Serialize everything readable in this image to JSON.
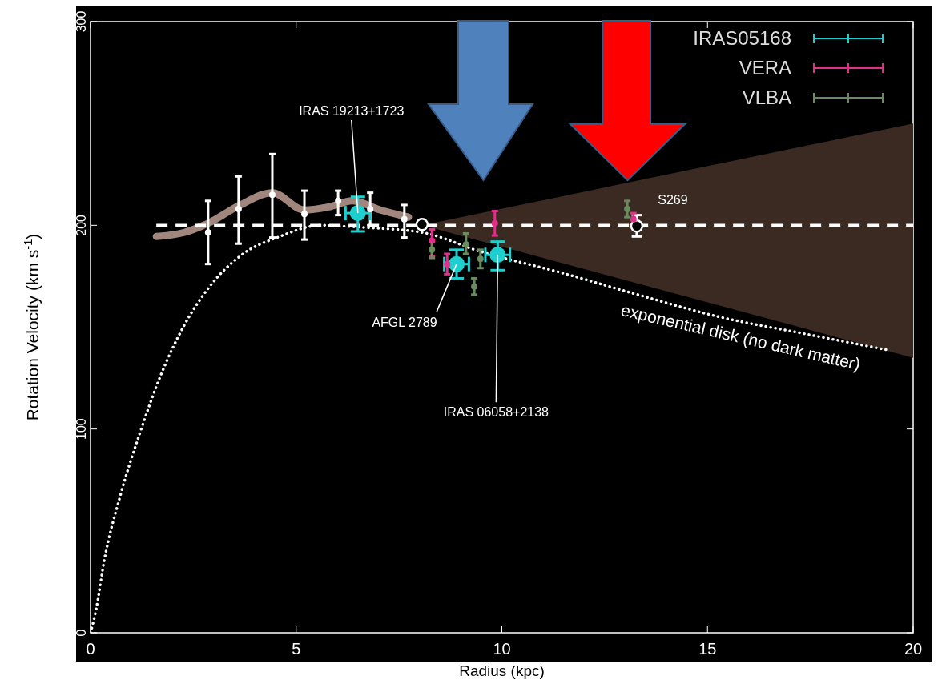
{
  "chart_data": {
    "type": "scatter",
    "xlabel": "Radius (kpc)",
    "ylabel": "Rotation Velocity (km s$^{-1}$)",
    "xlim": [
      0,
      20
    ],
    "ylim": [
      0,
      300
    ],
    "xticks": [
      0,
      5,
      10,
      15,
      20
    ],
    "yticks": [
      0,
      100,
      200,
      300
    ],
    "grid": false,
    "legend": "top right",
    "series": [
      {
        "type": "line",
        "color": "#c9a89c",
        "x": [
          1.6,
          2.28,
          2.86,
          3.64,
          4.42,
          5.2,
          5.78,
          6.37,
          7.05,
          7.73
        ],
        "values": [
          194.5,
          196.5,
          201,
          210,
          216,
          207.5,
          209,
          212,
          207.5,
          204
        ]
      },
      {
        "type": "line",
        "color": "#ffffff",
        "line_style": "dashed",
        "x": [
          1.6,
          8.06,
          20
        ],
        "values": [
          200,
          200,
          200
        ],
        "lower": [
          null,
          200,
          135
        ],
        "upper": [
          null,
          200,
          250
        ]
      },
      {
        "type": "line",
        "color": "#ffffff",
        "line_style": "dotted",
        "x": [
          0,
          0.14,
          0.33,
          0.72,
          1.2,
          1.7,
          2.28,
          2.86,
          3.64,
          4.6,
          5.6,
          6.6,
          8.06,
          9.5,
          11.4,
          13.3,
          15.3,
          17.3,
          19.4
        ],
        "values": [
          0,
          11.8,
          35,
          67,
          98,
          126,
          151,
          169,
          185,
          194.5,
          200,
          199,
          196.5,
          187,
          177,
          166,
          155,
          147,
          138.7
        ]
      },
      {
        "color": "#ffffff",
        "marker": "circle",
        "x": [
          2.86,
          3.6,
          4.42,
          5.2,
          6.02,
          6.8,
          7.63
        ],
        "values": [
          196.5,
          208,
          215,
          205.5,
          212,
          208,
          203
        ],
        "errors": [
          [
            181,
            212
          ],
          [
            191,
            224
          ],
          [
            194,
            235
          ],
          [
            193,
            217
          ],
          [
            205,
            217
          ],
          [
            200,
            216
          ],
          [
            194,
            210
          ]
        ]
      },
      {
        "color": "#ffffff",
        "marker": "circle",
        "x": [
          8.06,
          13.28
        ],
        "values": [
          200.4,
          199.6
        ],
        "errors": [
          null,
          [
            194.5,
            205
          ]
        ]
      },
      {
        "name": "IRAS05168",
        "color": "#1ecfcf",
        "marker": "circle",
        "x": [
          6.5,
          8.9,
          9.9
        ],
        "values": [
          206,
          181,
          185.5
        ],
        "errors": [
          [
            197,
            214
          ],
          [
            174,
            188
          ],
          [
            178,
            192
          ]
        ],
        "xerrors": [
          [
            6.2,
            6.8
          ],
          [
            8.6,
            9.2
          ],
          [
            9.6,
            10.2
          ]
        ]
      },
      {
        "name": "VERA",
        "color": "#e0308a",
        "marker": "circle",
        "x": [
          8.3,
          8.67,
          9.83,
          13.2
        ],
        "values": [
          192.5,
          181,
          201,
          203
        ],
        "errors": [
          [
            185,
            198
          ],
          [
            176,
            186
          ],
          [
            195,
            207
          ],
          [
            200,
            206
          ]
        ]
      },
      {
        "name": "VLBA",
        "color": "#6a8a60",
        "marker": "circle",
        "x": [
          8.3,
          9.13,
          9.48,
          9.33,
          13.05
        ],
        "values": [
          188,
          190.6,
          183.5,
          170,
          208
        ],
        "errors": [
          [
            184,
            192
          ],
          [
            186,
            196
          ],
          [
            179,
            188
          ],
          [
            166,
            174
          ],
          [
            204,
            212
          ]
        ]
      }
    ],
    "annotations": [
      {
        "text": "IRAS 19213+1723",
        "x": 6.5,
        "y": 206
      },
      {
        "text": "AFGL 2789",
        "x": 8.9,
        "y": 181
      },
      {
        "text": "IRAS 06058+2138",
        "x": 9.9,
        "y": 185.5
      },
      {
        "text": "S269",
        "x": 13.28,
        "y": 199.6
      },
      "exponential disk (no dark matter)"
    ]
  }
}
